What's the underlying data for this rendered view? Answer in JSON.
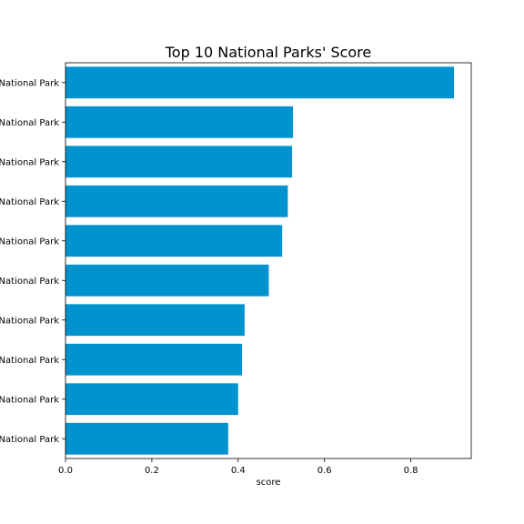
{
  "chart_data": {
    "type": "bar",
    "orientation": "horizontal",
    "title": "Top 10 National Parks' Score",
    "xlabel": "score",
    "ylabel": "",
    "xlim": [
      0,
      0.94
    ],
    "xticks": [
      0.0,
      0.2,
      0.4,
      0.6,
      0.8
    ],
    "xtick_labels": [
      "0.0",
      "0.2",
      "0.4",
      "0.6",
      "0.8"
    ],
    "categories": [
      "National Park",
      "National Park",
      "National Park",
      "National Park",
      "National Park",
      "National Park",
      "National Park",
      "National Park",
      "National Park",
      "National Park"
    ],
    "values": [
      0.9,
      0.527,
      0.525,
      0.515,
      0.502,
      0.471,
      0.415,
      0.409,
      0.4,
      0.377
    ],
    "bar_color": "#0093D0",
    "grid": false
  }
}
